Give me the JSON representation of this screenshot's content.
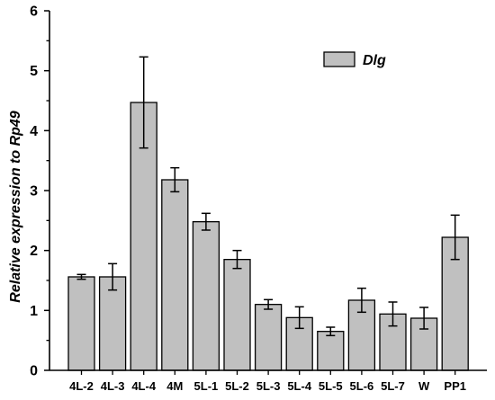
{
  "chart_data": {
    "type": "bar",
    "categories": [
      "4L-2",
      "4L-3",
      "4L-4",
      "4M",
      "5L-1",
      "5L-2",
      "5L-3",
      "5L-4",
      "5L-5",
      "5L-6",
      "5L-7",
      "W",
      "PP1"
    ],
    "series": [
      {
        "name": "Dlg",
        "values": [
          1.56,
          1.56,
          4.47,
          3.18,
          2.48,
          1.85,
          1.1,
          0.88,
          0.65,
          1.17,
          0.94,
          0.87,
          2.22
        ],
        "error": [
          0.04,
          0.22,
          0.76,
          0.2,
          0.14,
          0.15,
          0.08,
          0.18,
          0.07,
          0.2,
          0.2,
          0.18,
          0.37
        ],
        "color": "#c0c0c0"
      }
    ],
    "xlabel": "",
    "ylabel": "Relative expression to Rp49",
    "ylim": [
      0,
      6
    ],
    "yticks": [
      0,
      1,
      2,
      3,
      4,
      5,
      6
    ],
    "grid": false,
    "legend": "top-right"
  }
}
